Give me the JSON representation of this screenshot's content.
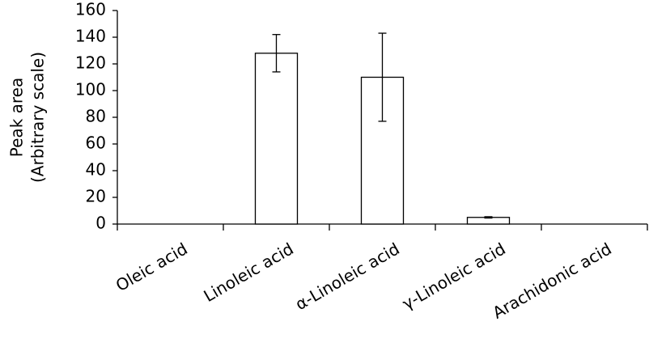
{
  "chart_data": {
    "type": "bar",
    "ylabel": [
      "Peak area",
      "(Arbitrary scale)"
    ],
    "categories": [
      "Oleic acid",
      "Linoleic acid",
      "α-Linoleic acid",
      "γ-Linoleic acid",
      "Arachidonic acid"
    ],
    "values": [
      0,
      128,
      110,
      5,
      0
    ],
    "errors": [
      0,
      14,
      33,
      0.5,
      0
    ],
    "color": "#ffffff",
    "ylim": [
      0,
      160
    ],
    "yticks": [
      0,
      20,
      40,
      60,
      80,
      100,
      120,
      140,
      160
    ],
    "grid": false
  }
}
